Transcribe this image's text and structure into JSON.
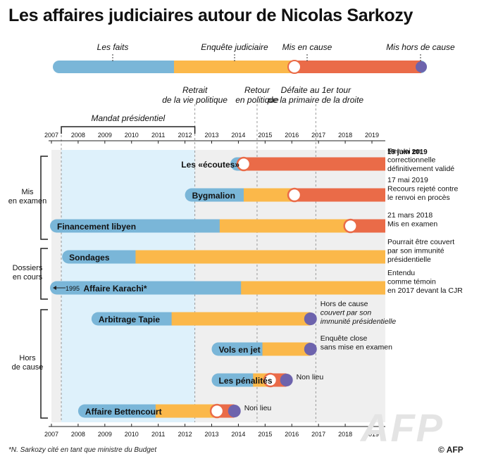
{
  "title": "Les affaires judiciaires autour de Nicolas Sarkozy",
  "footnote": "*N. Sarkozy cité en tant que ministre du Budget",
  "credit": "© AFP",
  "watermark": "AFP",
  "colors": {
    "blue": "#7ab6d8",
    "yellow": "#fbb84a",
    "red": "#ea6b48",
    "purple": "#6d63ad",
    "light_blue": "#def1fb",
    "grey": "#efefef",
    "dark": "#333333"
  },
  "legend": {
    "labels": [
      "Les faits",
      "Enquête judiciaire",
      "Mis en cause",
      "Mis hors de cause"
    ]
  },
  "chart_data": {
    "type": "timeline",
    "x_range": [
      2007,
      2019.5
    ],
    "ticks": [
      2007,
      2008,
      2009,
      2010,
      2011,
      2012,
      2013,
      2014,
      2015,
      2016,
      2017,
      2018,
      2019
    ],
    "mandat": {
      "label": "Mandat présidentiel",
      "start": 2007.37,
      "end": 2012.37
    },
    "events": [
      {
        "label": "Retrait de la vie politique",
        "lines": [
          "Retrait",
          "de la vie politique"
        ],
        "year": 2012.37
      },
      {
        "label": "Retour en politique",
        "lines": [
          "Retour",
          "en politique"
        ],
        "year": 2014.7
      },
      {
        "label": "Défaite au 1er tour de la primaire de la droite",
        "lines": [
          "Défaite au 1er tour",
          "de la primaire de la droite"
        ],
        "year": 2016.9
      }
    ],
    "groups": [
      {
        "label": "Mis en examen",
        "lines": [
          "Mis",
          "en examen"
        ]
      },
      {
        "label": "Dossiers en cours",
        "lines": [
          "Dossiers",
          "en cours"
        ]
      },
      {
        "label": "Hors de cause",
        "lines": [
          "Hors",
          "de cause"
        ]
      }
    ],
    "date_header": "19 juin 2019",
    "affairs": [
      {
        "name": "Les «écoutes»",
        "group": "Mis en examen",
        "facts_start": 2013.7,
        "inquiry_start": 2014.2,
        "mis_en_cause": 2014.2,
        "end": 2019.5,
        "hors_de_cause": null,
        "note": [
          "Renvoi en",
          "correctionnelle",
          "définitivement validé"
        ]
      },
      {
        "name": "Bygmalion",
        "group": "Mis en examen",
        "facts_start": 2012.0,
        "inquiry_start": 2014.2,
        "mis_en_cause": 2016.1,
        "end": 2019.5,
        "hors_de_cause": null,
        "note": [
          "17 mai 2019",
          "Recours rejeté contre",
          "le renvoi en procès"
        ]
      },
      {
        "name": "Financement libyen",
        "group": "Mis en examen",
        "facts_start": 2006.0,
        "inquiry_start": 2013.3,
        "mis_en_cause": 2018.2,
        "end": 2019.5,
        "hors_de_cause": null,
        "note": [
          "21 mars 2018",
          "Mis en examen"
        ]
      },
      {
        "name": "Sondages",
        "group": "Dossiers en cours",
        "facts_start": 2007.4,
        "inquiry_start": 2010.15,
        "mis_en_cause": null,
        "end": 2019.5,
        "hors_de_cause": null,
        "note": [
          "Pourrait être couvert",
          "par son immunité",
          "présidentielle"
        ]
      },
      {
        "name": "Affaire Karachi*",
        "group": "Dossiers en cours",
        "facts_start": 2006.0,
        "inquiry_start": 2014.1,
        "mis_en_cause": null,
        "end": 2019.5,
        "hors_de_cause": null,
        "prefix_label": "1995",
        "note": [
          "Entendu",
          "comme témoin",
          "en 2017 devant la CJR"
        ]
      },
      {
        "name": "Arbitrage Tapie",
        "group": "Hors de cause",
        "facts_start": 2008.5,
        "inquiry_start": 2011.5,
        "mis_en_cause": null,
        "end": 2016.7,
        "hors_de_cause": 2016.7,
        "note": [
          "Hors de cause",
          "couvert par son",
          "immunité présidentielle"
        ],
        "note_italic": [
          false,
          true,
          true
        ]
      },
      {
        "name": "Vols en jet",
        "group": "Hors de cause",
        "facts_start": 2013.0,
        "inquiry_start": 2014.9,
        "mis_en_cause": null,
        "end": 2016.7,
        "hors_de_cause": 2016.7,
        "note": [
          "Enquête close",
          "sans mise en examen"
        ]
      },
      {
        "name": "Les pénalités",
        "group": "Hors de cause",
        "facts_start": 2013.0,
        "inquiry_start": 2014.55,
        "mis_en_cause": 2015.2,
        "end": 2015.8,
        "hors_de_cause": 2015.8,
        "note": [
          "Non lieu"
        ]
      },
      {
        "name": "Affaire Bettencourt",
        "group": "Hors de cause",
        "facts_start": 2008.0,
        "inquiry_start": 2010.9,
        "mis_en_cause": 2013.2,
        "end": 2013.85,
        "hors_de_cause": 2013.85,
        "note": [
          "Non lieu"
        ]
      }
    ]
  }
}
